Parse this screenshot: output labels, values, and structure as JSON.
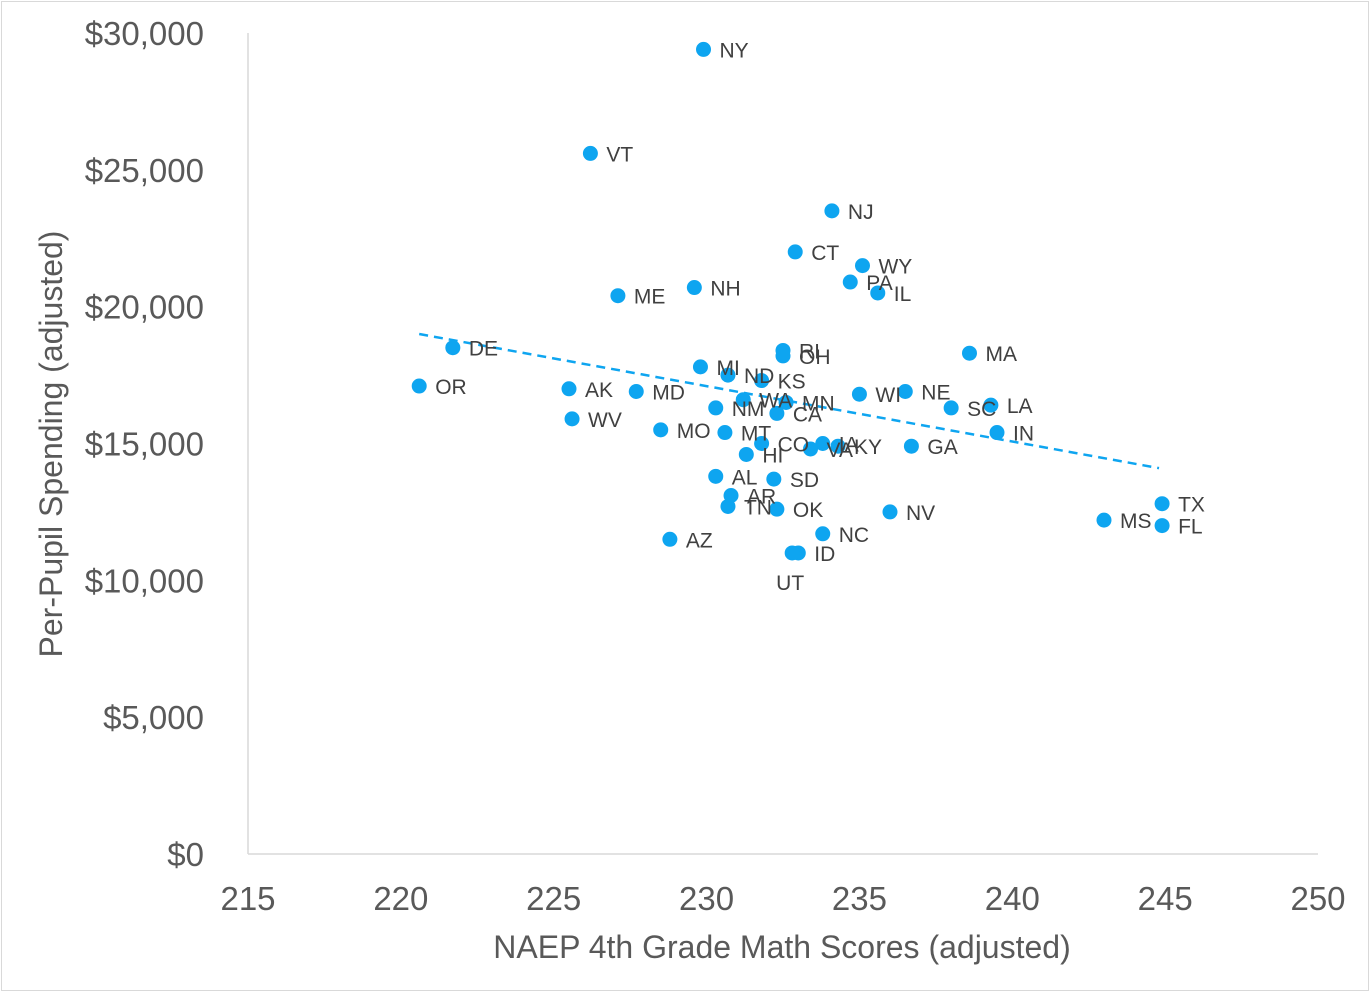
{
  "chart_data": {
    "type": "scatter",
    "xlabel": "NAEP 4th Grade Math Scores (adjusted)",
    "ylabel": "Per-Pupil Spending (adjusted)",
    "xlim": [
      215,
      250
    ],
    "ylim": [
      0,
      30000
    ],
    "x_ticks": [
      "215",
      "220",
      "225",
      "230",
      "235",
      "240",
      "245",
      "250"
    ],
    "x_tick_values": [
      215,
      220,
      225,
      230,
      235,
      240,
      245,
      250
    ],
    "y_ticks": [
      "$0",
      "$5,000",
      "$10,000",
      "$15,000",
      "$20,000",
      "$25,000",
      "$30,000"
    ],
    "y_tick_values": [
      0,
      5000,
      10000,
      15000,
      20000,
      25000,
      30000
    ],
    "grid": false,
    "marker_color": "#0ea5f0",
    "trendline": {
      "style": "dashed",
      "color": "#0ea5f0",
      "x": [
        220.6,
        244.8
      ],
      "y": [
        19000,
        14100
      ]
    },
    "points": [
      {
        "label": "NY",
        "x": 229.9,
        "y": 29400
      },
      {
        "label": "VT",
        "x": 226.2,
        "y": 25600
      },
      {
        "label": "NJ",
        "x": 234.1,
        "y": 23500
      },
      {
        "label": "CT",
        "x": 232.9,
        "y": 22000
      },
      {
        "label": "WY",
        "x": 235.1,
        "y": 21500
      },
      {
        "label": "PA",
        "x": 234.7,
        "y": 20900
      },
      {
        "label": "IL",
        "x": 235.6,
        "y": 20500
      },
      {
        "label": "ME",
        "x": 227.1,
        "y": 20400
      },
      {
        "label": "NH",
        "x": 229.6,
        "y": 20700
      },
      {
        "label": "DE",
        "x": 221.7,
        "y": 18500
      },
      {
        "label": "OR",
        "x": 220.6,
        "y": 17100
      },
      {
        "label": "RI",
        "x": 232.5,
        "y": 18400
      },
      {
        "label": "OH",
        "x": 232.5,
        "y": 18200
      },
      {
        "label": "MA",
        "x": 238.6,
        "y": 18300
      },
      {
        "label": "MI",
        "x": 229.8,
        "y": 17800
      },
      {
        "label": "ND",
        "x": 230.7,
        "y": 17500
      },
      {
        "label": "KS",
        "x": 231.8,
        "y": 17300
      },
      {
        "label": "AK",
        "x": 225.5,
        "y": 17000
      },
      {
        "label": "MD",
        "x": 227.7,
        "y": 16900
      },
      {
        "label": "WI",
        "x": 235.0,
        "y": 16800
      },
      {
        "label": "NE",
        "x": 236.5,
        "y": 16900
      },
      {
        "label": "WA",
        "x": 231.2,
        "y": 16600
      },
      {
        "label": "MN",
        "x": 232.6,
        "y": 16500
      },
      {
        "label": "NM",
        "x": 230.3,
        "y": 16300
      },
      {
        "label": "CA",
        "x": 232.3,
        "y": 16100
      },
      {
        "label": "SC",
        "x": 238.0,
        "y": 16300
      },
      {
        "label": "LA",
        "x": 239.3,
        "y": 16400
      },
      {
        "label": "WV",
        "x": 225.6,
        "y": 15900
      },
      {
        "label": "MO",
        "x": 228.5,
        "y": 15500
      },
      {
        "label": "MT",
        "x": 230.6,
        "y": 15400
      },
      {
        "label": "IN",
        "x": 239.5,
        "y": 15400
      },
      {
        "label": "CO",
        "x": 231.8,
        "y": 15000
      },
      {
        "label": "IA",
        "x": 233.8,
        "y": 15000
      },
      {
        "label": "VA",
        "x": 233.4,
        "y": 14800
      },
      {
        "label": "KY",
        "x": 234.3,
        "y": 14900
      },
      {
        "label": "GA",
        "x": 236.7,
        "y": 14900
      },
      {
        "label": "HI",
        "x": 231.3,
        "y": 14600
      },
      {
        "label": "AL",
        "x": 230.3,
        "y": 13800
      },
      {
        "label": "SD",
        "x": 232.2,
        "y": 13700
      },
      {
        "label": "AR",
        "x": 230.8,
        "y": 13100
      },
      {
        "label": "TN",
        "x": 230.7,
        "y": 12700
      },
      {
        "label": "OK",
        "x": 232.3,
        "y": 12600
      },
      {
        "label": "NV",
        "x": 236.0,
        "y": 12500
      },
      {
        "label": "TX",
        "x": 244.9,
        "y": 12800
      },
      {
        "label": "MS",
        "x": 243.0,
        "y": 12200
      },
      {
        "label": "FL",
        "x": 244.9,
        "y": 12000
      },
      {
        "label": "NC",
        "x": 233.8,
        "y": 11700
      },
      {
        "label": "AZ",
        "x": 228.8,
        "y": 11500
      },
      {
        "label": "ID",
        "x": 233.0,
        "y": 11000
      },
      {
        "label": "UT",
        "x": 232.8,
        "y": 11000
      }
    ]
  }
}
